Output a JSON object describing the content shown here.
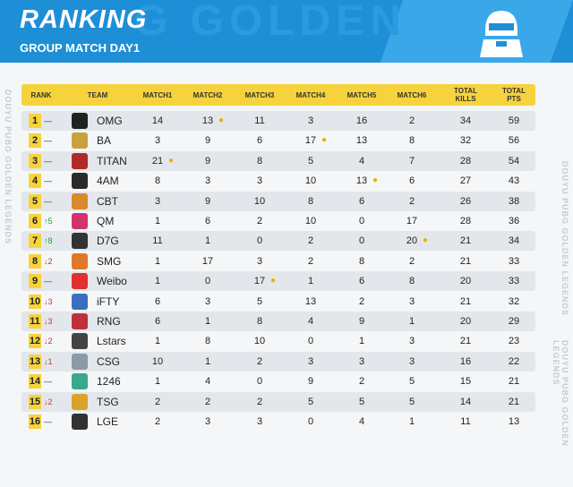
{
  "header": {
    "title": "RANKING",
    "subtitle": "GROUP MATCH  DAY1",
    "watermark": "G GOLDEN"
  },
  "side_text": "DOUYU PUBG GOLDEN LEGENDS",
  "columns": [
    "RANK",
    "TEAM",
    "MATCH1",
    "MATCH2",
    "MATCH3",
    "MATCH4",
    "MATCH5",
    "MATCH6",
    "TOTAL KILLS",
    "TOTAL PTS"
  ],
  "rows": [
    {
      "rank": "1",
      "change": "—",
      "dir": "same",
      "team": "OMG",
      "logo_color": "#222222",
      "m": [
        "14",
        "13",
        "11",
        "3",
        "16",
        "2"
      ],
      "kills": "34",
      "pts": "59",
      "chicken": [
        1
      ]
    },
    {
      "rank": "2",
      "change": "—",
      "dir": "same",
      "team": "BA",
      "logo_color": "#c9a23c",
      "m": [
        "3",
        "9",
        "6",
        "17",
        "13",
        "8"
      ],
      "kills": "32",
      "pts": "56",
      "chicken": [
        3
      ]
    },
    {
      "rank": "3",
      "change": "—",
      "dir": "same",
      "team": "TITAN",
      "logo_color": "#b02a2a",
      "m": [
        "21",
        "9",
        "8",
        "5",
        "4",
        "7"
      ],
      "kills": "28",
      "pts": "54",
      "chicken": [
        0
      ]
    },
    {
      "rank": "4",
      "change": "—",
      "dir": "same",
      "team": "4AM",
      "logo_color": "#2b2b2b",
      "m": [
        "8",
        "3",
        "3",
        "10",
        "13",
        "6"
      ],
      "kills": "27",
      "pts": "43",
      "chicken": [
        4
      ]
    },
    {
      "rank": "5",
      "change": "—",
      "dir": "same",
      "team": "CBT",
      "logo_color": "#d98a2a",
      "m": [
        "3",
        "9",
        "10",
        "8",
        "6",
        "2"
      ],
      "kills": "26",
      "pts": "38",
      "chicken": []
    },
    {
      "rank": "6",
      "change": "↑5",
      "dir": "up",
      "team": "QM",
      "logo_color": "#d2336e",
      "m": [
        "1",
        "6",
        "2",
        "10",
        "0",
        "17"
      ],
      "kills": "28",
      "pts": "36",
      "chicken": []
    },
    {
      "rank": "7",
      "change": "↑8",
      "dir": "up",
      "team": "D7G",
      "logo_color": "#333333",
      "m": [
        "11",
        "1",
        "0",
        "2",
        "0",
        "20"
      ],
      "kills": "21",
      "pts": "34",
      "chicken": [
        5
      ]
    },
    {
      "rank": "8",
      "change": "↓2",
      "dir": "down",
      "team": "SMG",
      "logo_color": "#e0782a",
      "m": [
        "1",
        "17",
        "3",
        "2",
        "8",
        "2"
      ],
      "kills": "21",
      "pts": "33",
      "chicken": []
    },
    {
      "rank": "9",
      "change": "—",
      "dir": "same",
      "team": "Weibo",
      "logo_color": "#e03030",
      "m": [
        "1",
        "0",
        "17",
        "1",
        "6",
        "8"
      ],
      "kills": "20",
      "pts": "33",
      "chicken": [
        2
      ]
    },
    {
      "rank": "10",
      "change": "↓3",
      "dir": "down",
      "team": "iFTY",
      "logo_color": "#3a6fc0",
      "m": [
        "6",
        "3",
        "5",
        "13",
        "2",
        "3"
      ],
      "kills": "21",
      "pts": "32",
      "chicken": []
    },
    {
      "rank": "11",
      "change": "↓3",
      "dir": "down",
      "team": "RNG",
      "logo_color": "#c0303a",
      "m": [
        "6",
        "1",
        "8",
        "4",
        "9",
        "1"
      ],
      "kills": "20",
      "pts": "29",
      "chicken": []
    },
    {
      "rank": "12",
      "change": "↓2",
      "dir": "down",
      "team": "Lstars",
      "logo_color": "#444444",
      "m": [
        "1",
        "8",
        "10",
        "0",
        "1",
        "3"
      ],
      "kills": "21",
      "pts": "23",
      "chicken": []
    },
    {
      "rank": "13",
      "change": "↓1",
      "dir": "down",
      "team": "CSG",
      "logo_color": "#8a9aa8",
      "m": [
        "10",
        "1",
        "2",
        "3",
        "3",
        "3"
      ],
      "kills": "16",
      "pts": "22",
      "chicken": []
    },
    {
      "rank": "14",
      "change": "—",
      "dir": "same",
      "team": "1246",
      "logo_color": "#3aa88a",
      "m": [
        "1",
        "4",
        "0",
        "9",
        "2",
        "5"
      ],
      "kills": "15",
      "pts": "21",
      "chicken": []
    },
    {
      "rank": "15",
      "change": "↓2",
      "dir": "down",
      "team": "TSG",
      "logo_color": "#d9a22a",
      "m": [
        "2",
        "2",
        "2",
        "5",
        "5",
        "5"
      ],
      "kills": "14",
      "pts": "21",
      "chicken": []
    },
    {
      "rank": "16",
      "change": "—",
      "dir": "same",
      "team": "LGE",
      "logo_color": "#333333",
      "m": [
        "2",
        "3",
        "3",
        "0",
        "4",
        "1"
      ],
      "kills": "11",
      "pts": "13",
      "chicken": []
    }
  ]
}
